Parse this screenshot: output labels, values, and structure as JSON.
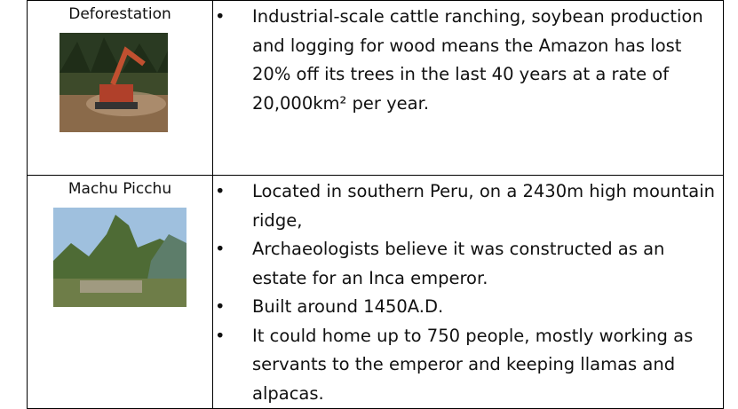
{
  "table": {
    "rows": [
      {
        "label": "Deforestation",
        "bullets": [
          "Industrial-scale cattle ranching, soybean production and logging for wood means the Amazon has lost 20% off its trees in the last 40 years at a rate of 20,000km² per year."
        ]
      },
      {
        "label": "Machu Picchu",
        "bullets": [
          "Located in southern Peru, on a 2430m high mountain ridge,",
          "Archaeologists believe it was constructed as an estate for an Inca emperor.",
          "Built around 1450A.D.",
          "It could home up to 750 people, mostly working as servants to the emperor and keeping llamas and alpacas."
        ]
      }
    ]
  }
}
